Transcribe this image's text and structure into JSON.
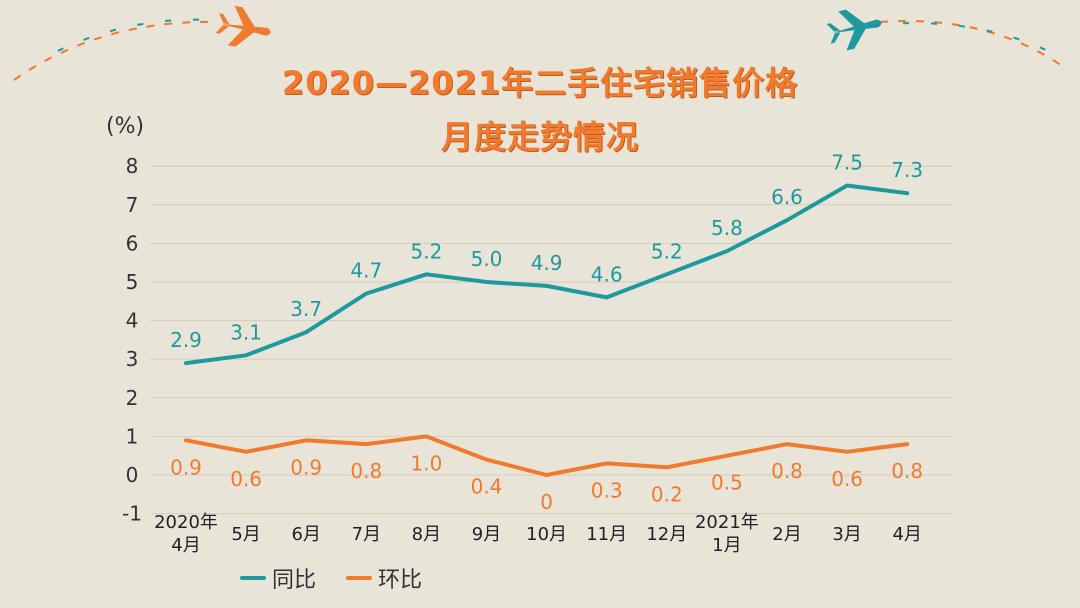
{
  "title_line1": "2020—2021年二手住宅销售价格",
  "title_line2": "月度走势情况",
  "unit": "(%)",
  "colors": {
    "yoy": "#1e9a9f",
    "mom": "#f07a2d",
    "title": "#f07a2d",
    "plane_left": "#f07a2d",
    "plane_right": "#1e9a9f"
  },
  "chart_data": {
    "type": "line",
    "x_labels": [
      [
        "2020年",
        "4月"
      ],
      [
        "5月"
      ],
      [
        "6月"
      ],
      [
        "7月"
      ],
      [
        "8月"
      ],
      [
        "9月"
      ],
      [
        "10月"
      ],
      [
        "11月"
      ],
      [
        "12月"
      ],
      [
        "2021年",
        "1月"
      ],
      [
        "2月"
      ],
      [
        "3月"
      ],
      [
        "4月"
      ]
    ],
    "series": [
      {
        "name": "同比",
        "color": "#1e9a9f",
        "values": [
          2.9,
          3.1,
          3.7,
          4.7,
          5.2,
          5.0,
          4.9,
          4.6,
          5.2,
          5.8,
          6.6,
          7.5,
          7.3
        ],
        "labels": [
          "2.9",
          "3.1",
          "3.7",
          "4.7",
          "5.2",
          "5.0",
          "4.9",
          "4.6",
          "5.2",
          "5.8",
          "6.6",
          "7.5",
          "7.3"
        ]
      },
      {
        "name": "环比",
        "color": "#f07a2d",
        "values": [
          0.9,
          0.6,
          0.9,
          0.8,
          1.0,
          0.4,
          0,
          0.3,
          0.2,
          0.5,
          0.8,
          0.6,
          0.8
        ],
        "labels": [
          "0.9",
          "0.6",
          "0.9",
          "0.8",
          "1.0",
          "0.4",
          "0",
          "0.3",
          "0.2",
          "0.5",
          "0.8",
          "0.6",
          "0.8"
        ]
      }
    ],
    "y_ticks": [
      "8",
      "7",
      "6",
      "5",
      "4",
      "3",
      "2",
      "1",
      "0",
      "-1"
    ],
    "y_tick_values": [
      8,
      7,
      6,
      5,
      4,
      3,
      2,
      1,
      0,
      -1
    ],
    "ylim": [
      -1,
      8
    ],
    "grid": true,
    "legend_position": "bottom-left"
  }
}
